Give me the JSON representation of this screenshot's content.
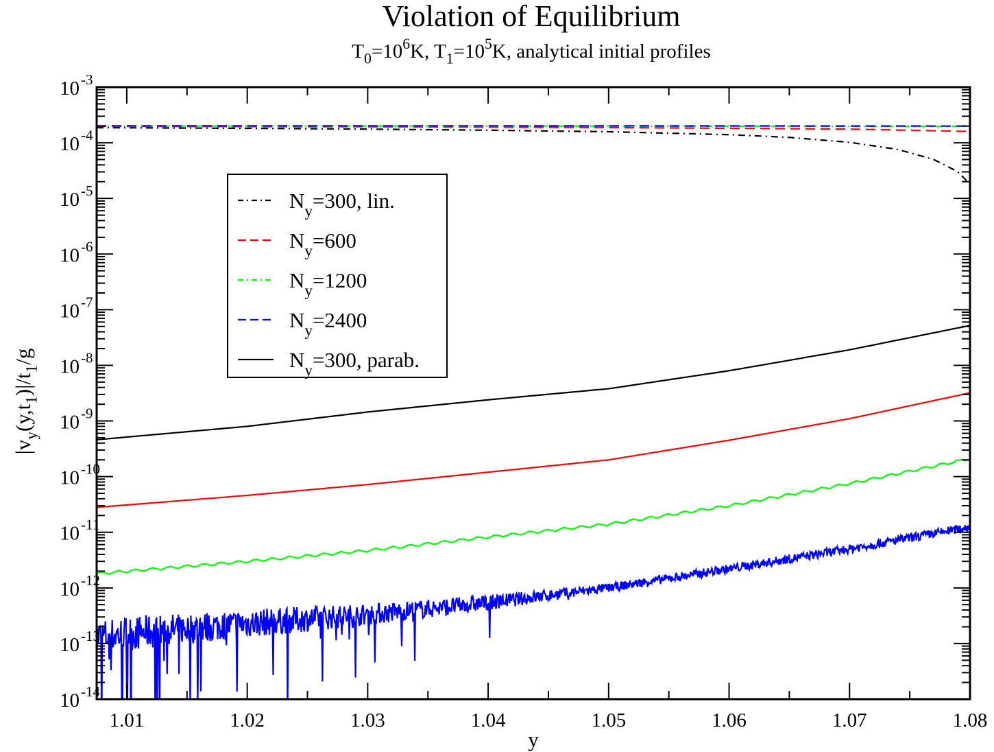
{
  "chart_data": {
    "type": "line",
    "title": "Violation of  Equilibrium",
    "subtitle": {
      "parts": [
        {
          "text": "T",
          "style": "normal"
        },
        {
          "text": "0",
          "style": "sub"
        },
        {
          "text": "=10",
          "style": "normal"
        },
        {
          "text": "6",
          "style": "sup"
        },
        {
          "text": "K, T",
          "style": "normal"
        },
        {
          "text": "1",
          "style": "sub"
        },
        {
          "text": "=10",
          "style": "normal"
        },
        {
          "text": "5",
          "style": "sup"
        },
        {
          "text": "K, analytical initial profiles",
          "style": "normal"
        }
      ]
    },
    "xlabel": "y",
    "ylabel": {
      "parts": [
        {
          "text": "|v",
          "style": "normal"
        },
        {
          "text": "y",
          "style": "sub"
        },
        {
          "text": "(y,t",
          "style": "normal"
        },
        {
          "text": "1",
          "style": "sub"
        },
        {
          "text": ")|/t",
          "style": "normal"
        },
        {
          "text": "1",
          "style": "sub"
        },
        {
          "text": "/g",
          "style": "normal"
        }
      ]
    },
    "xscale": "linear",
    "yscale": "log",
    "xlim": [
      1.0075,
      1.08
    ],
    "ylim": [
      1e-14,
      0.001
    ],
    "xticks": [
      1.01,
      1.02,
      1.03,
      1.04,
      1.05,
      1.06,
      1.07,
      1.08
    ],
    "xtick_labels": [
      "1.01",
      "1.02",
      "1.03",
      "1.04",
      "1.05",
      "1.06",
      "1.07",
      "1.08"
    ],
    "yticks_exp": [
      -14,
      -13,
      -12,
      -11,
      -10,
      -9,
      -8,
      -7,
      -6,
      -5,
      -4,
      -3
    ],
    "ytick_base": "10",
    "grid": false,
    "legend": {
      "placement": "upper-left-center",
      "entries": [
        {
          "label_main": "N",
          "label_sub": "y",
          "label_rest": "=300, lin.",
          "color": "#000000",
          "dash": "dashdot"
        },
        {
          "label_main": "N",
          "label_sub": "y",
          "label_rest": "=600",
          "color": "#ff0000",
          "dash": "dashed"
        },
        {
          "label_main": "N",
          "label_sub": "y",
          "label_rest": "=1200",
          "color": "#00ff00",
          "dash": "dashdot"
        },
        {
          "label_main": "N",
          "label_sub": "y",
          "label_rest": "=2400",
          "color": "#0000ff",
          "dash": "dashed"
        },
        {
          "label_main": "N",
          "label_sub": "y",
          "label_rest": "=300, parab.",
          "color": "#000000",
          "dash": "solid"
        }
      ]
    },
    "series": [
      {
        "name": "N_y=300, lin. (upper)",
        "color": "#000000",
        "dash": "dashdot",
        "x": [
          1.0075,
          1.02,
          1.03,
          1.04,
          1.05,
          1.06,
          1.065,
          1.07,
          1.074,
          1.077,
          1.079,
          1.08
        ],
        "y": [
          0.000187,
          0.000182,
          0.000176,
          0.000168,
          0.000158,
          0.00014,
          0.000125,
          0.000102,
          7.6e-05,
          5e-05,
          3e-05,
          1.8e-05
        ]
      },
      {
        "name": "N_y=600 (upper)",
        "color": "#ff0000",
        "dash": "dashed",
        "x": [
          1.0075,
          1.03,
          1.05,
          1.07,
          1.08
        ],
        "y": [
          0.000198,
          0.000194,
          0.000188,
          0.000176,
          0.00016
        ]
      },
      {
        "name": "N_y=1200 (upper)",
        "color": "#00ff00",
        "dash": "dashdot",
        "x": [
          1.0075,
          1.04,
          1.08
        ],
        "y": [
          0.0002,
          0.0002,
          0.000197
        ]
      },
      {
        "name": "N_y=2400 (upper)",
        "color": "#0000ff",
        "dash": "dashed",
        "x": [
          1.0075,
          1.04,
          1.08
        ],
        "y": [
          0.000202,
          0.000202,
          0.0002
        ]
      },
      {
        "name": "N_y=300, parab.",
        "color": "#000000",
        "dash": "solid",
        "x": [
          1.0075,
          1.02,
          1.03,
          1.04,
          1.05,
          1.06,
          1.07,
          1.08
        ],
        "y": [
          4.6e-10,
          8e-10,
          1.45e-09,
          2.4e-09,
          3.8e-09,
          8e-09,
          1.9e-08,
          5.2e-08
        ]
      },
      {
        "name": "N_y=600 (lower)",
        "color": "#ff0000",
        "dash": "solid",
        "x": [
          1.0075,
          1.02,
          1.03,
          1.04,
          1.05,
          1.06,
          1.07,
          1.08
        ],
        "y": [
          2.8e-11,
          4.6e-11,
          7.2e-11,
          1.2e-10,
          2e-10,
          4.5e-10,
          1.1e-09,
          3.2e-09
        ]
      },
      {
        "name": "N_y=1200 (lower)",
        "color": "#00ff00",
        "dash": "solid",
        "x": [
          1.0075,
          1.02,
          1.03,
          1.04,
          1.05,
          1.06,
          1.07,
          1.08
        ],
        "y": [
          1.8e-12,
          3e-12,
          4.7e-12,
          8.2e-12,
          1.4e-11,
          3e-11,
          7.5e-11,
          2.1e-10
        ]
      },
      {
        "name": "N_y=2400 (lower, noisy)",
        "color": "#0000ff",
        "dash": "solid",
        "x": [
          1.0075,
          1.01,
          1.02,
          1.03,
          1.04,
          1.05,
          1.06,
          1.07,
          1.08
        ],
        "y": [
          1.3e-13,
          1.5e-13,
          2.3e-13,
          3.3e-13,
          5.4e-13,
          1e-12,
          2.2e-12,
          5e-12,
          1.25e-11
        ],
        "noise": "large downward spikes to below 1e-14 near y<1.02, decreasing noise toward larger y"
      }
    ]
  }
}
